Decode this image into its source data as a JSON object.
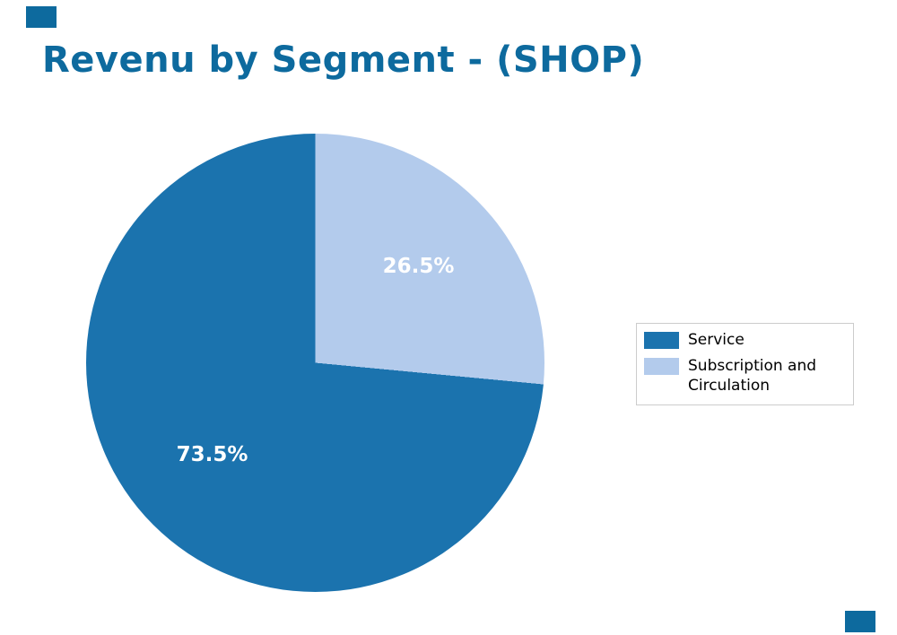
{
  "title": "Revenu by Segment - (SHOP)",
  "title_color": "#0d6a9e",
  "corner_mark_color": "#0d6a9e",
  "chart_data": {
    "type": "pie",
    "title": "Revenu by Segment - (SHOP)",
    "labels": [
      "Service",
      "Subscription and Circulation"
    ],
    "values": [
      73.5,
      26.5
    ],
    "colors": [
      "#1b73ae",
      "#b3cbec"
    ],
    "value_labels": [
      "73.5%",
      "26.5%"
    ],
    "start_angle_deg": 0,
    "direction": "clockwise",
    "legend_position": "right"
  },
  "pie_labels": {
    "dark": "73.5%",
    "light": "26.5%"
  },
  "legend": {
    "items": [
      {
        "label": "Service",
        "color": "#1b73ae"
      },
      {
        "label": "Subscription and Circulation",
        "color": "#b3cbec"
      }
    ]
  }
}
